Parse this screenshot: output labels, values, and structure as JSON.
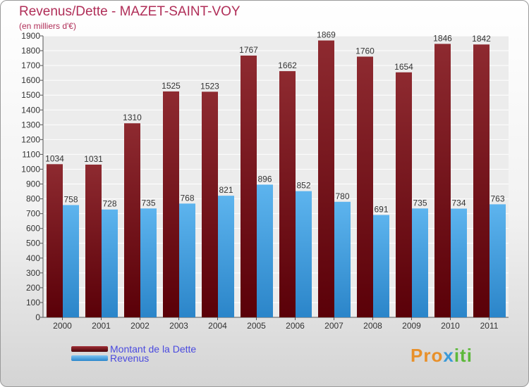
{
  "header": {
    "title": "Revenus/Dette - MAZET-SAINT-VOY",
    "subtitle": "(en milliers d'€)"
  },
  "legend": {
    "items": [
      {
        "label": "Montant de la Dette",
        "color": "#6e1218"
      },
      {
        "label": "Revenus",
        "color": "#3d9de0"
      }
    ]
  },
  "logo": {
    "part1": "Pro",
    "part2": "x",
    "part3": "iti"
  },
  "chart_data": {
    "type": "bar",
    "title": "Revenus/Dette - MAZET-SAINT-VOY",
    "ylabel": "(en milliers d'€)",
    "xlabel": "",
    "ylim": [
      0,
      1900
    ],
    "ytick_step": 100,
    "grid": true,
    "legend_position": "bottom-left",
    "categories": [
      "2000",
      "2001",
      "2002",
      "2003",
      "2004",
      "2005",
      "2006",
      "2007",
      "2008",
      "2009",
      "2010",
      "2011"
    ],
    "series": [
      {
        "name": "Montant de la Dette",
        "color": "#6e1218",
        "values": [
          1034,
          1031,
          1310,
          1525,
          1523,
          1767,
          1662,
          1869,
          1760,
          1654,
          1846,
          1842
        ]
      },
      {
        "name": "Revenus",
        "color": "#3d9de0",
        "values": [
          758,
          728,
          735,
          768,
          821,
          896,
          852,
          780,
          691,
          735,
          734,
          763
        ]
      }
    ]
  }
}
